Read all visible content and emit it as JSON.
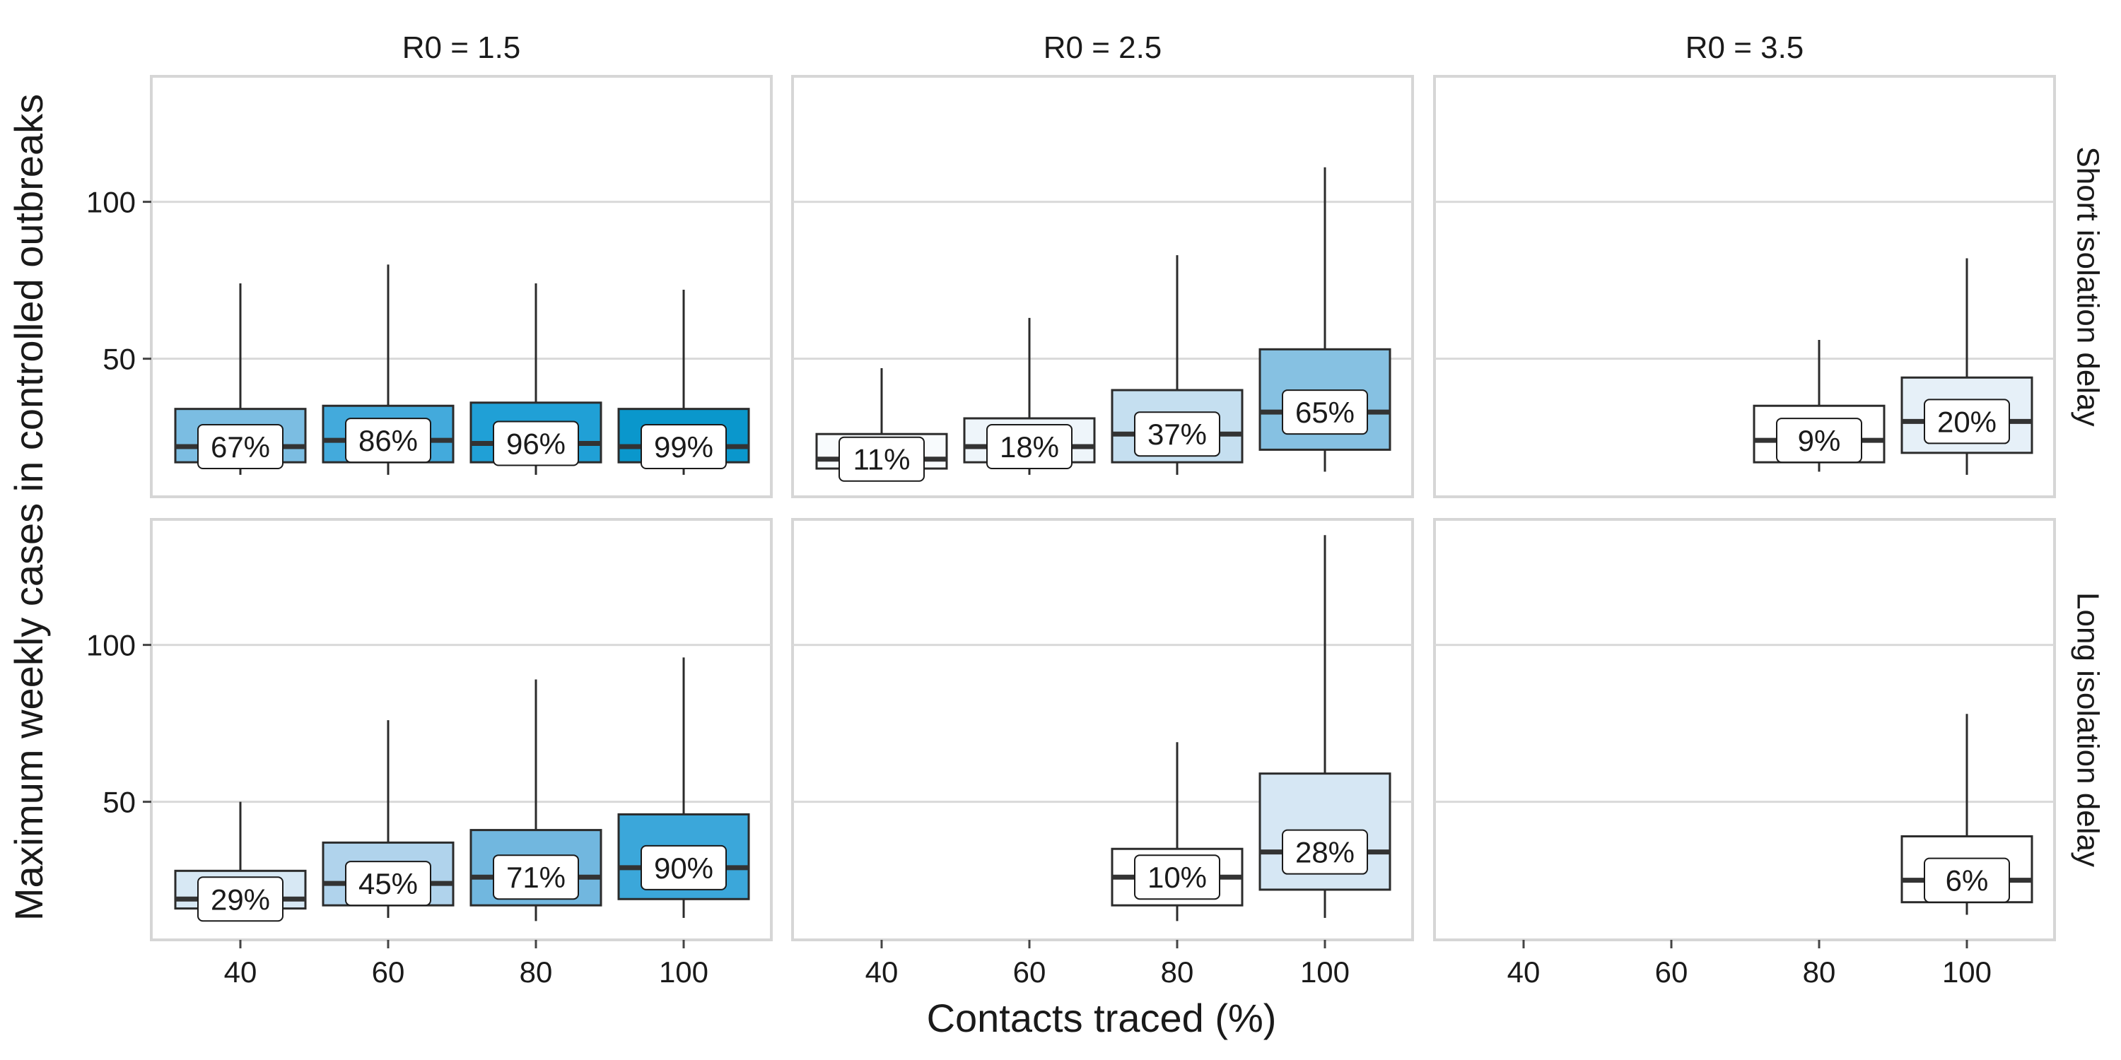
{
  "chart_data": {
    "type": "boxplot",
    "x_axis_label": "Contacts traced (%)",
    "y_axis_label": "Maximum weekly cases in controlled outbreaks",
    "x_ticks": [
      "40",
      "60",
      "80",
      "100"
    ],
    "y_ticks": [
      "50",
      "100"
    ],
    "ylim": [
      6,
      140
    ],
    "columns": [
      "R0 = 1.5",
      "R0 = 2.5",
      "R0 = 3.5"
    ],
    "rows": [
      "Short isolation delay",
      "Long isolation delay"
    ],
    "fill_color_scale": {
      "low": "#ffffff",
      "high": "#0a97cc",
      "variable": "percent controlled"
    },
    "grid": true,
    "panels": [
      {
        "row": 0,
        "col": 0,
        "boxes": [
          {
            "x": 40,
            "whisker_low": 13,
            "q1": 17,
            "median": 22,
            "q3": 34,
            "whisker_high": 74,
            "label": "67%",
            "fill": "#7bbde2"
          },
          {
            "x": 60,
            "whisker_low": 13,
            "q1": 17,
            "median": 24,
            "q3": 35,
            "whisker_high": 80,
            "label": "86%",
            "fill": "#43aadc"
          },
          {
            "x": 80,
            "whisker_low": 13,
            "q1": 17,
            "median": 23,
            "q3": 36,
            "whisker_high": 74,
            "label": "96%",
            "fill": "#20a0d6"
          },
          {
            "x": 100,
            "whisker_low": 13,
            "q1": 17,
            "median": 22,
            "q3": 34,
            "whisker_high": 72,
            "label": "99%",
            "fill": "#0a97cc"
          }
        ]
      },
      {
        "row": 0,
        "col": 1,
        "boxes": [
          {
            "x": 40,
            "whisker_low": 15,
            "q1": 15,
            "median": 18,
            "q3": 26,
            "whisker_high": 47,
            "label": "11%",
            "fill": "#f8fbfd"
          },
          {
            "x": 60,
            "whisker_low": 13,
            "q1": 17,
            "median": 22,
            "q3": 31,
            "whisker_high": 63,
            "label": "18%",
            "fill": "#eef5fa"
          },
          {
            "x": 80,
            "whisker_low": 13,
            "q1": 17,
            "median": 26,
            "q3": 40,
            "whisker_high": 83,
            "label": "37%",
            "fill": "#c5dff0"
          },
          {
            "x": 100,
            "whisker_low": 14,
            "q1": 21,
            "median": 33,
            "q3": 53,
            "whisker_high": 111,
            "label": "65%",
            "fill": "#86c1e2"
          }
        ]
      },
      {
        "row": 0,
        "col": 2,
        "boxes": [
          {
            "x": 80,
            "whisker_low": 14,
            "q1": 17,
            "median": 24,
            "q3": 35,
            "whisker_high": 56,
            "label": "9%",
            "fill": "#ffffff"
          },
          {
            "x": 100,
            "whisker_low": 13,
            "q1": 20,
            "median": 30,
            "q3": 44,
            "whisker_high": 82,
            "label": "20%",
            "fill": "#e6f0f8"
          }
        ]
      },
      {
        "row": 1,
        "col": 0,
        "boxes": [
          {
            "x": 40,
            "whisker_low": 16,
            "q1": 16,
            "median": 19,
            "q3": 28,
            "whisker_high": 50,
            "label": "29%",
            "fill": "#d7e8f4"
          },
          {
            "x": 60,
            "whisker_low": 13,
            "q1": 17,
            "median": 24,
            "q3": 37,
            "whisker_high": 76,
            "label": "45%",
            "fill": "#b0d3ec"
          },
          {
            "x": 80,
            "whisker_low": 12,
            "q1": 17,
            "median": 26,
            "q3": 41,
            "whisker_high": 89,
            "label": "71%",
            "fill": "#71b7df"
          },
          {
            "x": 100,
            "whisker_low": 13,
            "q1": 19,
            "median": 29,
            "q3": 46,
            "whisker_high": 96,
            "label": "90%",
            "fill": "#3ba7da"
          }
        ]
      },
      {
        "row": 1,
        "col": 1,
        "boxes": [
          {
            "x": 80,
            "whisker_low": 12,
            "q1": 17,
            "median": 26,
            "q3": 35,
            "whisker_high": 69,
            "label": "10%",
            "fill": "#ffffff"
          },
          {
            "x": 100,
            "whisker_low": 13,
            "q1": 22,
            "median": 34,
            "q3": 59,
            "whisker_high": 135,
            "label": "28%",
            "fill": "#d6e7f4"
          }
        ]
      },
      {
        "row": 1,
        "col": 2,
        "boxes": [
          {
            "x": 100,
            "whisker_low": 14,
            "q1": 18,
            "median": 25,
            "q3": 39,
            "whisker_high": 78,
            "label": "6%",
            "fill": "#ffffff"
          }
        ]
      }
    ]
  }
}
